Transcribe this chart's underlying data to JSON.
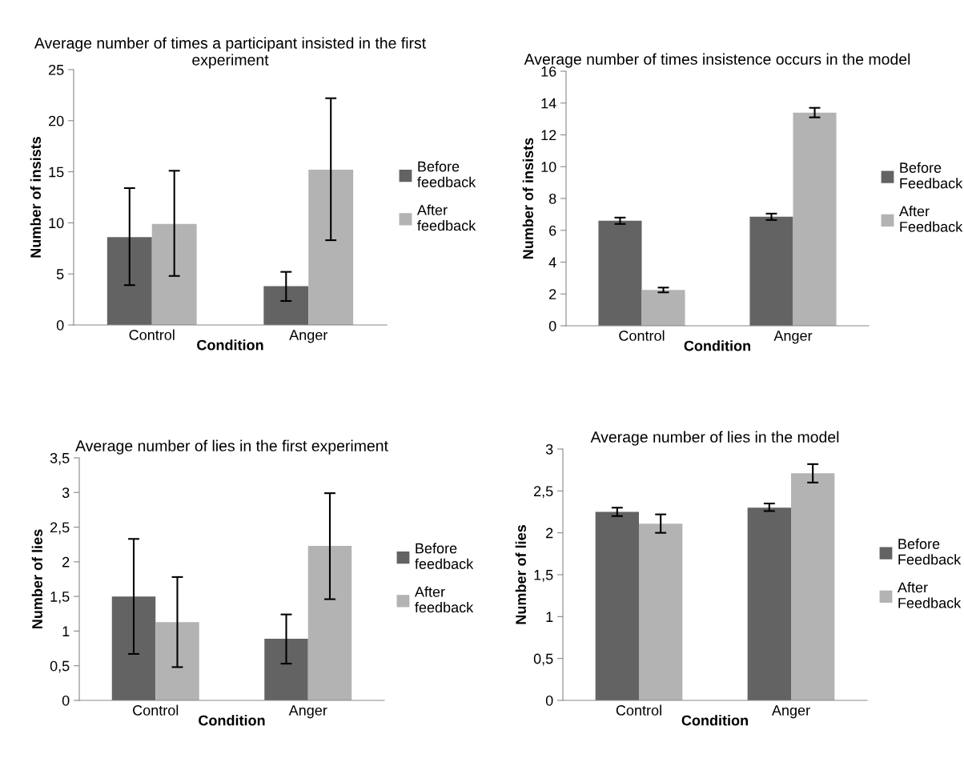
{
  "chart_data": [
    {
      "type": "bar",
      "title": "Average number of times a participant insisted in the first experiment",
      "xlabel": "Condition",
      "ylabel": "Number of insists",
      "categories": [
        "Control",
        "Anger"
      ],
      "ylim": [
        0,
        25
      ],
      "yticks": [
        0,
        5,
        10,
        15,
        20,
        25
      ],
      "grid": false,
      "legend": "right",
      "series": [
        {
          "name": "Before feedback",
          "color": "#636363",
          "values": [
            8.6,
            3.8
          ],
          "errors": [
            [
              3.9,
              13.4
            ],
            [
              2.35,
              5.2
            ]
          ]
        },
        {
          "name": "After feedback",
          "color": "#b3b3b3",
          "values": [
            9.9,
            15.2
          ],
          "errors": [
            [
              4.8,
              15.1
            ],
            [
              8.3,
              22.2
            ]
          ]
        }
      ]
    },
    {
      "type": "bar",
      "title": "Average number of times insistence occurs in the model",
      "xlabel": "Condition",
      "ylabel": "Number of insists",
      "categories": [
        "Control",
        "Anger"
      ],
      "ylim": [
        0,
        16
      ],
      "yticks": [
        0,
        2,
        4,
        6,
        8,
        10,
        12,
        14,
        16
      ],
      "grid": false,
      "legend": "right",
      "series": [
        {
          "name": "Before Feedback",
          "color": "#636363",
          "values": [
            6.6,
            6.85
          ],
          "errors": [
            [
              6.4,
              6.8
            ],
            [
              6.65,
              7.05
            ]
          ]
        },
        {
          "name": "After Feedback",
          "color": "#b3b3b3",
          "values": [
            2.25,
            13.4
          ],
          "errors": [
            [
              2.1,
              2.4
            ],
            [
              13.1,
              13.7
            ]
          ]
        }
      ]
    },
    {
      "type": "bar",
      "title": "Average number of lies in the first experiment",
      "xlabel": "Condition",
      "ylabel": "Number of lies",
      "categories": [
        "Control",
        "Anger"
      ],
      "ylim": [
        0,
        3.5
      ],
      "yticks": [
        0,
        {
          "value": 0.5,
          "label": "0,5"
        },
        1,
        {
          "value": 1.5,
          "label": "1,5"
        },
        2,
        {
          "value": 2.5,
          "label": "2,5"
        },
        3,
        {
          "value": 3.5,
          "label": "3,5"
        }
      ],
      "grid": false,
      "legend": "right",
      "series": [
        {
          "name": "Before feedback",
          "color": "#636363",
          "values": [
            1.5,
            0.89
          ],
          "errors": [
            [
              0.67,
              2.33
            ],
            [
              0.53,
              1.24
            ]
          ]
        },
        {
          "name": "After feedback",
          "color": "#b3b3b3",
          "values": [
            1.13,
            2.23
          ],
          "errors": [
            [
              0.48,
              1.78
            ],
            [
              1.46,
              2.99
            ]
          ]
        }
      ]
    },
    {
      "type": "bar",
      "title": "Average number of lies in the model",
      "xlabel": "Condition",
      "ylabel": "Number of lies",
      "categories": [
        "Control",
        "Anger"
      ],
      "ylim": [
        0,
        3
      ],
      "yticks": [
        0,
        {
          "value": 0.5,
          "label": "0,5"
        },
        1,
        {
          "value": 1.5,
          "label": "1,5"
        },
        2,
        {
          "value": 2.5,
          "label": "2,5"
        },
        3
      ],
      "grid": false,
      "legend": "right",
      "series": [
        {
          "name": "Before Feedback",
          "color": "#636363",
          "values": [
            2.25,
            2.3
          ],
          "errors": [
            [
              2.2,
              2.3
            ],
            [
              2.26,
              2.35
            ]
          ]
        },
        {
          "name": "After Feedback",
          "color": "#b3b3b3",
          "values": [
            2.11,
            2.71
          ],
          "errors": [
            [
              2.0,
              2.22
            ],
            [
              2.6,
              2.82
            ]
          ]
        }
      ]
    }
  ]
}
